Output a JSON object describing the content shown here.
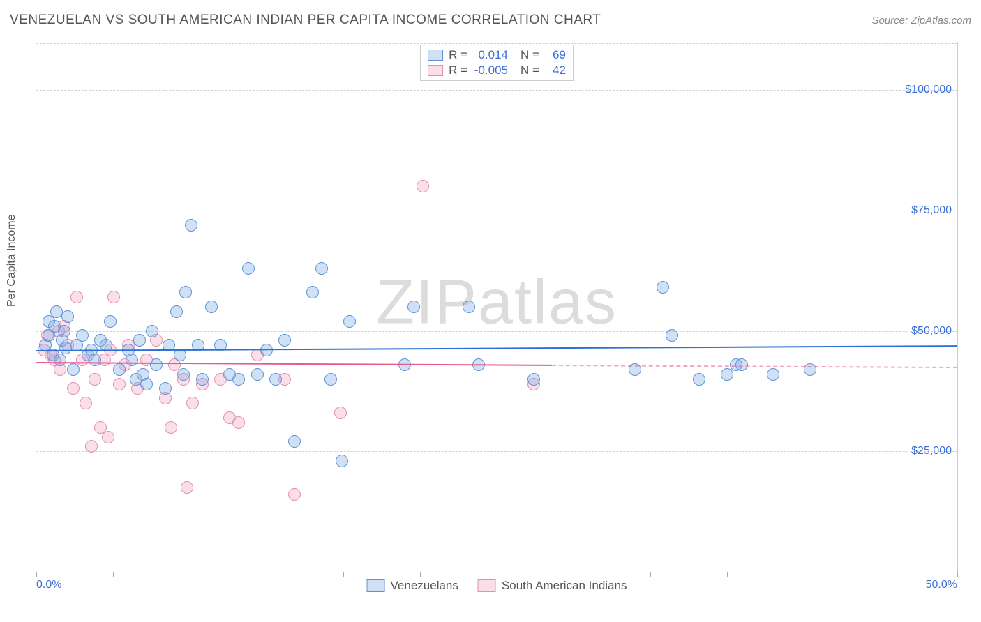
{
  "title": "VENEZUELAN VS SOUTH AMERICAN INDIAN PER CAPITA INCOME CORRELATION CHART",
  "source": "Source: ZipAtlas.com",
  "ylabel": "Per Capita Income",
  "watermark": "ZIPatlas",
  "chart": {
    "type": "scatter",
    "xlim": [
      0,
      50
    ],
    "ylim": [
      0,
      110000
    ],
    "yticks": [
      25000,
      50000,
      75000,
      100000
    ],
    "ytick_labels": [
      "$25,000",
      "$50,000",
      "$75,000",
      "$100,000"
    ],
    "xtick_positions": [
      0,
      4.17,
      8.33,
      12.5,
      16.67,
      20.83,
      25,
      29.17,
      33.33,
      37.5,
      41.67,
      45.83,
      50
    ],
    "xlabels": {
      "start": "0.0%",
      "end": "50.0%"
    },
    "grid_color": "#d0d0d0",
    "border_color": "#cccccc",
    "point_radius": 9
  },
  "series": [
    {
      "name": "Venezuelans",
      "fill": "rgba(120,170,230,0.35)",
      "stroke": "#5f93d8",
      "trend": {
        "y_left": 46000,
        "y_right": 47000,
        "color": "#2d6fd6",
        "width": 2,
        "dashed_from": null
      },
      "stats": {
        "R": "0.014",
        "N": "69"
      },
      "points": [
        [
          0.5,
          47000
        ],
        [
          0.7,
          49000
        ],
        [
          0.7,
          52000
        ],
        [
          0.9,
          45000
        ],
        [
          1.0,
          51000
        ],
        [
          1.1,
          54000
        ],
        [
          1.3,
          44000
        ],
        [
          1.4,
          48000
        ],
        [
          1.5,
          50000
        ],
        [
          1.6,
          46500
        ],
        [
          1.7,
          53000
        ],
        [
          2.0,
          42000
        ],
        [
          2.2,
          47000
        ],
        [
          2.5,
          49000
        ],
        [
          2.8,
          45000
        ],
        [
          3.0,
          46000
        ],
        [
          3.2,
          44000
        ],
        [
          3.5,
          48000
        ],
        [
          3.8,
          47000
        ],
        [
          4.0,
          52000
        ],
        [
          4.5,
          42000
        ],
        [
          5.0,
          46000
        ],
        [
          5.2,
          44000
        ],
        [
          5.4,
          40000
        ],
        [
          5.6,
          48000
        ],
        [
          5.8,
          41000
        ],
        [
          6.0,
          39000
        ],
        [
          6.3,
          50000
        ],
        [
          6.5,
          43000
        ],
        [
          7.0,
          38000
        ],
        [
          7.2,
          47000
        ],
        [
          7.6,
          54000
        ],
        [
          7.8,
          45000
        ],
        [
          8.0,
          41000
        ],
        [
          8.1,
          58000
        ],
        [
          8.4,
          72000
        ],
        [
          8.8,
          47000
        ],
        [
          9.0,
          40000
        ],
        [
          9.5,
          55000
        ],
        [
          10.0,
          47000
        ],
        [
          10.5,
          41000
        ],
        [
          11.0,
          40000
        ],
        [
          11.5,
          63000
        ],
        [
          12.0,
          41000
        ],
        [
          12.5,
          46000
        ],
        [
          13.0,
          40000
        ],
        [
          13.5,
          48000
        ],
        [
          14.0,
          27000
        ],
        [
          15.0,
          58000
        ],
        [
          15.5,
          63000
        ],
        [
          16.0,
          40000
        ],
        [
          16.6,
          23000
        ],
        [
          17.0,
          52000
        ],
        [
          20.0,
          43000
        ],
        [
          20.5,
          55000
        ],
        [
          23.5,
          55000
        ],
        [
          24.0,
          43000
        ],
        [
          27.0,
          40000
        ],
        [
          32.5,
          42000
        ],
        [
          34.0,
          59000
        ],
        [
          34.5,
          49000
        ],
        [
          36.0,
          40000
        ],
        [
          37.5,
          41000
        ],
        [
          38.0,
          43000
        ],
        [
          38.3,
          43000
        ],
        [
          40.0,
          41000
        ],
        [
          42.0,
          42000
        ]
      ]
    },
    {
      "name": "South American Indians",
      "fill": "rgba(240,160,190,0.35)",
      "stroke": "#e28fb0",
      "trend": {
        "y_left": 43500,
        "y_right": 42500,
        "color": "#e85a8a",
        "width": 2,
        "dashed_from": 28
      },
      "stats": {
        "R": "-0.005",
        "N": "42"
      },
      "points": [
        [
          0.4,
          46000
        ],
        [
          0.6,
          49000
        ],
        [
          0.8,
          45000
        ],
        [
          1.0,
          44000
        ],
        [
          1.2,
          50000
        ],
        [
          1.3,
          42000
        ],
        [
          1.5,
          51000
        ],
        [
          1.7,
          47000
        ],
        [
          2.0,
          38000
        ],
        [
          2.2,
          57000
        ],
        [
          2.5,
          44000
        ],
        [
          2.7,
          35000
        ],
        [
          3.0,
          26000
        ],
        [
          3.2,
          40000
        ],
        [
          3.5,
          30000
        ],
        [
          3.7,
          44000
        ],
        [
          3.9,
          28000
        ],
        [
          4.0,
          46000
        ],
        [
          4.2,
          57000
        ],
        [
          4.5,
          39000
        ],
        [
          4.8,
          43000
        ],
        [
          5.0,
          47000
        ],
        [
          5.5,
          38000
        ],
        [
          6.0,
          44000
        ],
        [
          6.5,
          48000
        ],
        [
          7.0,
          36000
        ],
        [
          7.3,
          30000
        ],
        [
          7.5,
          43000
        ],
        [
          8.0,
          40000
        ],
        [
          8.2,
          17500
        ],
        [
          8.5,
          35000
        ],
        [
          9.0,
          39000
        ],
        [
          10.0,
          40000
        ],
        [
          10.5,
          32000
        ],
        [
          11.0,
          31000
        ],
        [
          12.0,
          45000
        ],
        [
          13.5,
          40000
        ],
        [
          14.0,
          16000
        ],
        [
          16.5,
          33000
        ],
        [
          21.0,
          80000
        ],
        [
          27.0,
          39000
        ]
      ]
    }
  ]
}
